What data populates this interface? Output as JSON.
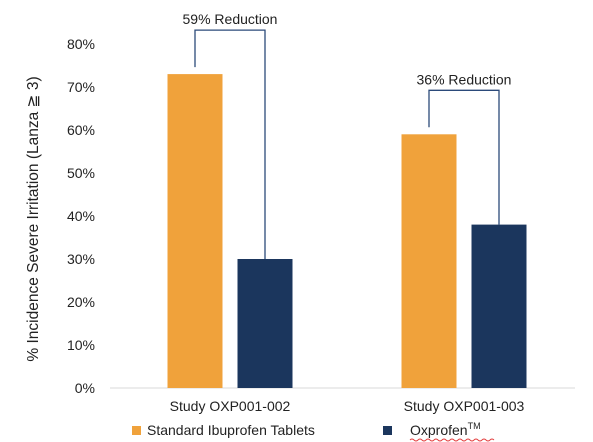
{
  "chart_data": {
    "type": "bar",
    "ylabel": "% Incidence Severe Irritation (Lanza ≧ 3)",
    "ylim": [
      0,
      80
    ],
    "yticks": [
      "0%",
      "10%",
      "20%",
      "30%",
      "40%",
      "50%",
      "60%",
      "70%",
      "80%"
    ],
    "categories": [
      "Study OXP001-002",
      "Study OXP001-003"
    ],
    "series": [
      {
        "name": "Standard Ibuprofen Tablets",
        "color": "#F0A23B",
        "values": [
          73,
          59
        ]
      },
      {
        "name": "Oxprofen",
        "name_superscript": "TM",
        "color": "#1B365D",
        "values": [
          30,
          38
        ]
      }
    ],
    "annotations": [
      {
        "text": "59% Reduction",
        "category": 0
      },
      {
        "text": "36% Reduction",
        "category": 1
      }
    ],
    "grid": false,
    "legend_position": "bottom"
  }
}
